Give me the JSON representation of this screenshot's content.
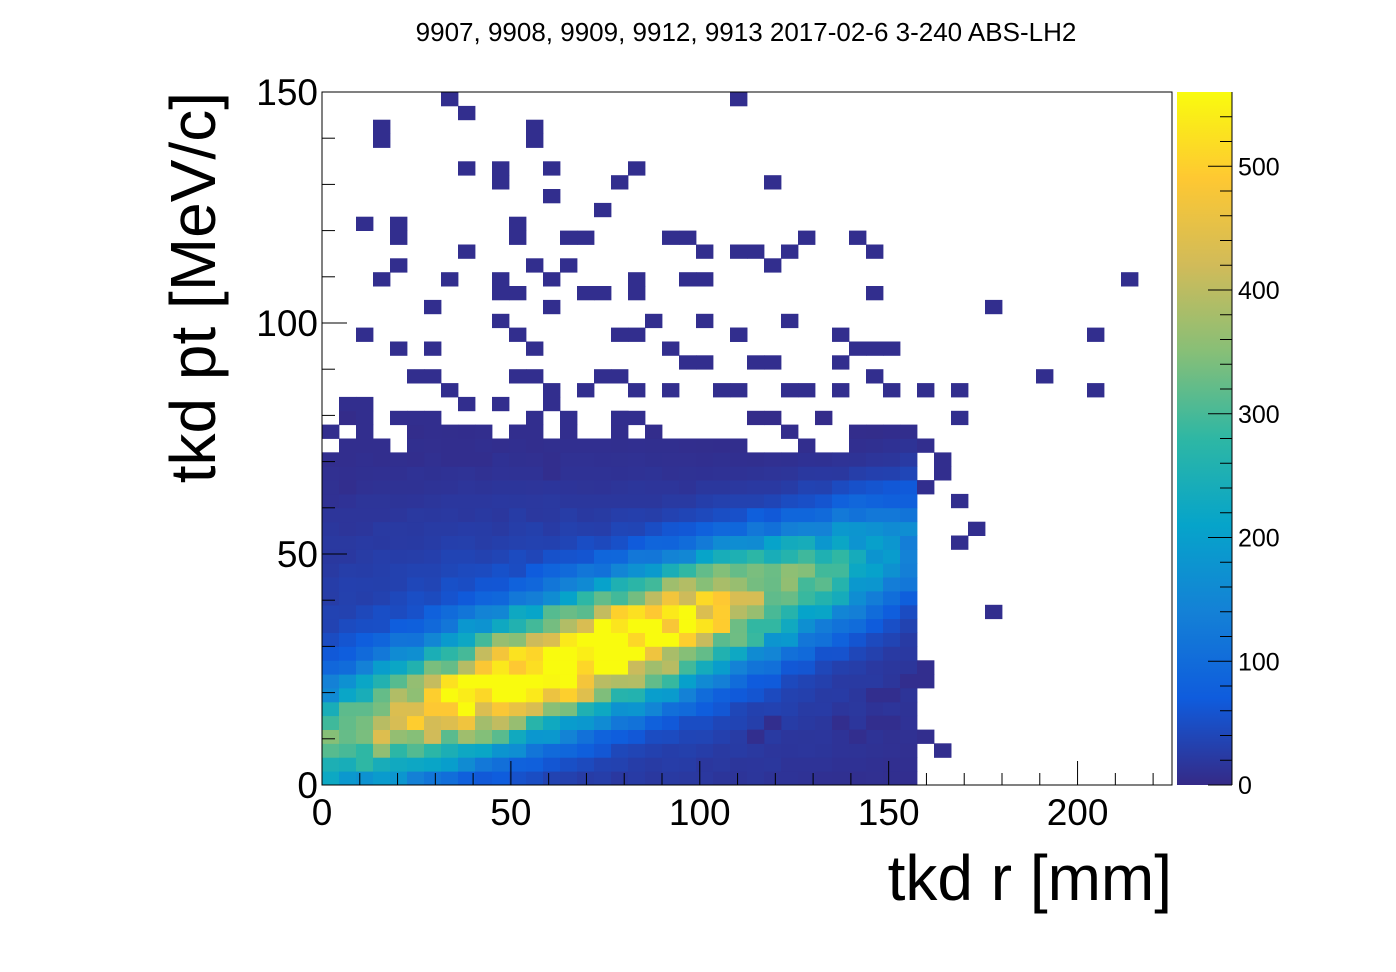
{
  "chart_data": {
    "type": "heatmap",
    "title": "9907, 9908, 9909, 9912, 9913 2017-02-6 3-240 ABS-LH2",
    "xlabel": "tkd r [mm]",
    "ylabel": "tkd pt [MeV/c]",
    "xlim": [
      0,
      225
    ],
    "ylim": [
      0,
      150
    ],
    "x_ticks": [
      {
        "value": 0,
        "label": "0"
      },
      {
        "value": 50,
        "label": "50"
      },
      {
        "value": 100,
        "label": "100"
      },
      {
        "value": 150,
        "label": "150"
      },
      {
        "value": 200,
        "label": "200"
      }
    ],
    "y_ticks": [
      {
        "value": 0,
        "label": "0"
      },
      {
        "value": 50,
        "label": "50"
      },
      {
        "value": 100,
        "label": "100"
      },
      {
        "value": 150,
        "label": "150"
      }
    ],
    "colorbar": {
      "range": [
        0,
        560
      ],
      "ticks": [
        {
          "value": 0,
          "label": "0"
        },
        {
          "value": 100,
          "label": "100"
        },
        {
          "value": 200,
          "label": "200"
        },
        {
          "value": 300,
          "label": "300"
        },
        {
          "value": 400,
          "label": "400"
        },
        {
          "value": 500,
          "label": "500"
        }
      ],
      "colormap": "parula"
    },
    "colormap_stops": [
      "#352a87",
      "#0f5cdd",
      "#1481d6",
      "#06a4ca",
      "#2eb7a4",
      "#87bf77",
      "#d1bb59",
      "#fec832",
      "#f9fb0e"
    ],
    "bin_width_x": 4.5,
    "bin_width_y": 3.0,
    "distribution": {
      "peak": {
        "r": 66,
        "pt": 27,
        "count": 560
      },
      "ridge_slope": 0.28,
      "r_cutoff": 155,
      "pt_cutoff_core": 80
    },
    "sparse_bins": [
      [
        33,
        147
      ],
      [
        38,
        144
      ],
      [
        110,
        147
      ],
      [
        16,
        138
      ],
      [
        16,
        141
      ],
      [
        56,
        138
      ],
      [
        56,
        141
      ],
      [
        38,
        132
      ],
      [
        45,
        129
      ],
      [
        45,
        132
      ],
      [
        60,
        132
      ],
      [
        80,
        129
      ],
      [
        85,
        132
      ],
      [
        120,
        129
      ],
      [
        60,
        126
      ],
      [
        75,
        123
      ],
      [
        10,
        120
      ],
      [
        20,
        117
      ],
      [
        20,
        120
      ],
      [
        52,
        117
      ],
      [
        52,
        120
      ],
      [
        65,
        117
      ],
      [
        70,
        117
      ],
      [
        90,
        117
      ],
      [
        95,
        117
      ],
      [
        100,
        114
      ],
      [
        110,
        114
      ],
      [
        115,
        114
      ],
      [
        125,
        114
      ],
      [
        130,
        117
      ],
      [
        140,
        117
      ],
      [
        145,
        114
      ],
      [
        40,
        114
      ],
      [
        55,
        111
      ],
      [
        65,
        111
      ],
      [
        20,
        111
      ],
      [
        15,
        108
      ],
      [
        33,
        108
      ],
      [
        45,
        108
      ],
      [
        48,
        105
      ],
      [
        52,
        105
      ],
      [
        60,
        108
      ],
      [
        70,
        105
      ],
      [
        75,
        105
      ],
      [
        82,
        105
      ],
      [
        85,
        108
      ],
      [
        97,
        108
      ],
      [
        103,
        108
      ],
      [
        120,
        111
      ],
      [
        145,
        105
      ],
      [
        215,
        108
      ],
      [
        178,
        102
      ],
      [
        205,
        96
      ],
      [
        10,
        96
      ],
      [
        28,
        102
      ],
      [
        45,
        99
      ],
      [
        60,
        102
      ],
      [
        88,
        99
      ],
      [
        100,
        99
      ],
      [
        110,
        96
      ],
      [
        20,
        93
      ],
      [
        30,
        93
      ],
      [
        50,
        96
      ],
      [
        55,
        93
      ],
      [
        78,
        96
      ],
      [
        85,
        96
      ],
      [
        112,
        96
      ],
      [
        122,
        99
      ],
      [
        135,
        96
      ],
      [
        140,
        93
      ],
      [
        150,
        93
      ],
      [
        90,
        93
      ],
      [
        95,
        90
      ],
      [
        100,
        90
      ],
      [
        115,
        90
      ],
      [
        120,
        90
      ],
      [
        135,
        90
      ],
      [
        148,
        93
      ],
      [
        190,
        87
      ],
      [
        203,
        84
      ],
      [
        25,
        87
      ],
      [
        30,
        87
      ],
      [
        35,
        84
      ],
      [
        50,
        87
      ],
      [
        55,
        87
      ],
      [
        60,
        84
      ],
      [
        70,
        84
      ],
      [
        75,
        87
      ],
      [
        80,
        87
      ],
      [
        85,
        84
      ],
      [
        90,
        84
      ],
      [
        105,
        84
      ],
      [
        112,
        84
      ],
      [
        125,
        84
      ],
      [
        130,
        84
      ],
      [
        135,
        84
      ],
      [
        145,
        87
      ],
      [
        150,
        84
      ],
      [
        158,
        84
      ],
      [
        168,
        84
      ],
      [
        168,
        78
      ],
      [
        8,
        81
      ],
      [
        12,
        81
      ],
      [
        10,
        78
      ],
      [
        18,
        78
      ],
      [
        25,
        78
      ],
      [
        30,
        78
      ],
      [
        40,
        81
      ],
      [
        45,
        81
      ],
      [
        55,
        78
      ],
      [
        60,
        81
      ],
      [
        63,
        78
      ],
      [
        78,
        78
      ],
      [
        82,
        78
      ],
      [
        2,
        75
      ],
      [
        12,
        75
      ],
      [
        28,
        75
      ],
      [
        35,
        72
      ],
      [
        45,
        72
      ],
      [
        50,
        75
      ],
      [
        55,
        72
      ],
      [
        58,
        75
      ],
      [
        2,
        69
      ],
      [
        6,
        72
      ],
      [
        15,
        72
      ],
      [
        24,
        69
      ],
      [
        32,
        69
      ],
      [
        36,
        69
      ],
      [
        44,
        69
      ],
      [
        60,
        69
      ],
      [
        62,
        66
      ],
      [
        160,
        72
      ],
      [
        165,
        69
      ],
      [
        165,
        66
      ],
      [
        8,
        63
      ],
      [
        160,
        63
      ],
      [
        168,
        60
      ],
      [
        172,
        54
      ],
      [
        168,
        51
      ],
      [
        178,
        36
      ],
      [
        160,
        24
      ],
      [
        155,
        21
      ],
      [
        145,
        18
      ],
      [
        150,
        18
      ],
      [
        160,
        21
      ],
      [
        145,
        12
      ],
      [
        150,
        12
      ],
      [
        158,
        9
      ],
      [
        165,
        6
      ],
      [
        162,
        6
      ],
      [
        120,
        12
      ],
      [
        135,
        12
      ],
      [
        140,
        9
      ],
      [
        115,
        9
      ]
    ]
  }
}
